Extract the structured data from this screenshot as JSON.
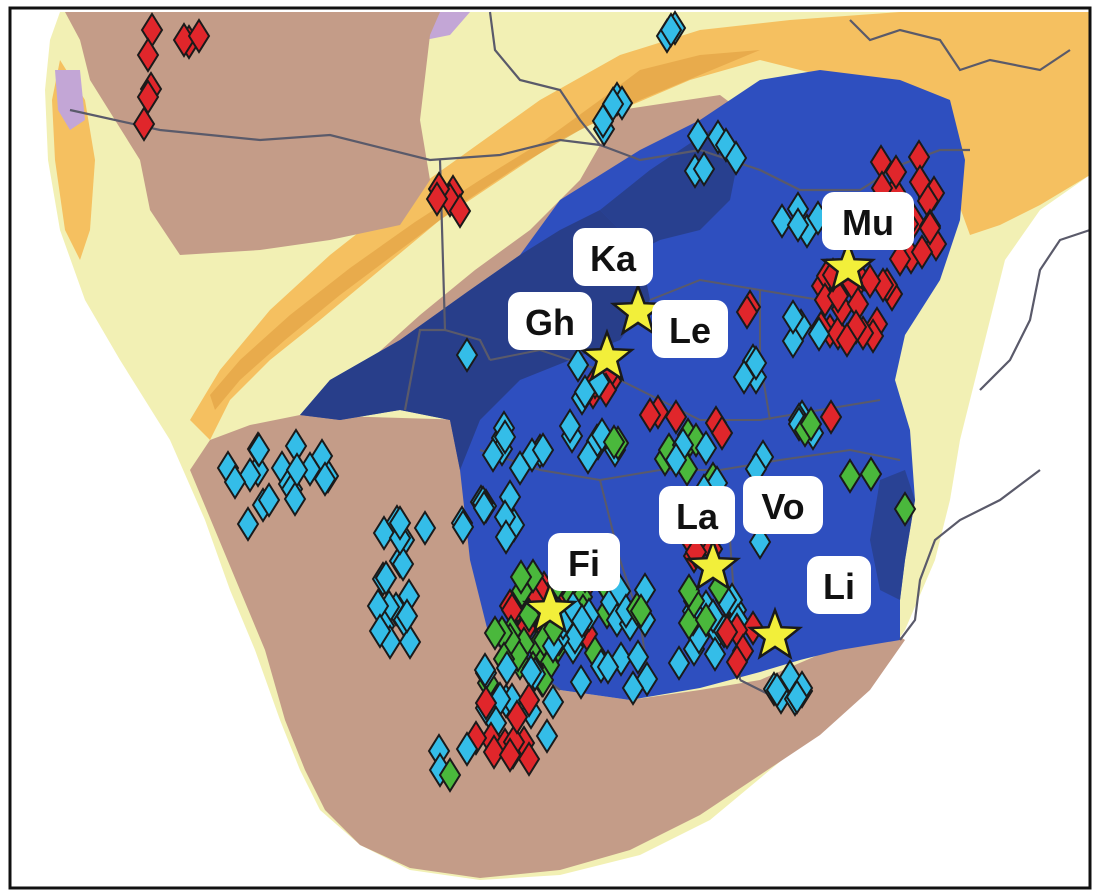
{
  "colors": {
    "ocean": "#ffffff",
    "land_pale": "#f2f0b4",
    "belt_orange": "#f5c060",
    "belt_dark_orange": "#e3a446",
    "brown_terrane": "#c49c88",
    "craton_blue": "#2e4fbf",
    "craton_dark_blue": "#283e8a",
    "lilac": "#c3a6d6",
    "border_line": "#5a5a6a",
    "frame": "#111111",
    "marker_red": "#e0262b",
    "marker_cyan": "#34bde8",
    "marker_green": "#4ab83c",
    "star_fill": "#f2ef3a",
    "label_box": "#ffffff"
  },
  "legend_classes": [
    {
      "id": "red",
      "icon": "red-diamond-marker"
    },
    {
      "id": "cyan",
      "icon": "cyan-diamond-marker"
    },
    {
      "id": "green",
      "icon": "green-diamond-marker"
    },
    {
      "id": "star",
      "icon": "yellow-star-marker"
    }
  ],
  "sites": [
    {
      "id": "ka",
      "label": "Ka"
    },
    {
      "id": "gh",
      "label": "Gh"
    },
    {
      "id": "le",
      "label": "Le"
    },
    {
      "id": "mu",
      "label": "Mu"
    },
    {
      "id": "fi",
      "label": "Fi"
    },
    {
      "id": "la",
      "label": "La"
    },
    {
      "id": "vo",
      "label": "Vo"
    },
    {
      "id": "li",
      "label": "Li"
    }
  ]
}
